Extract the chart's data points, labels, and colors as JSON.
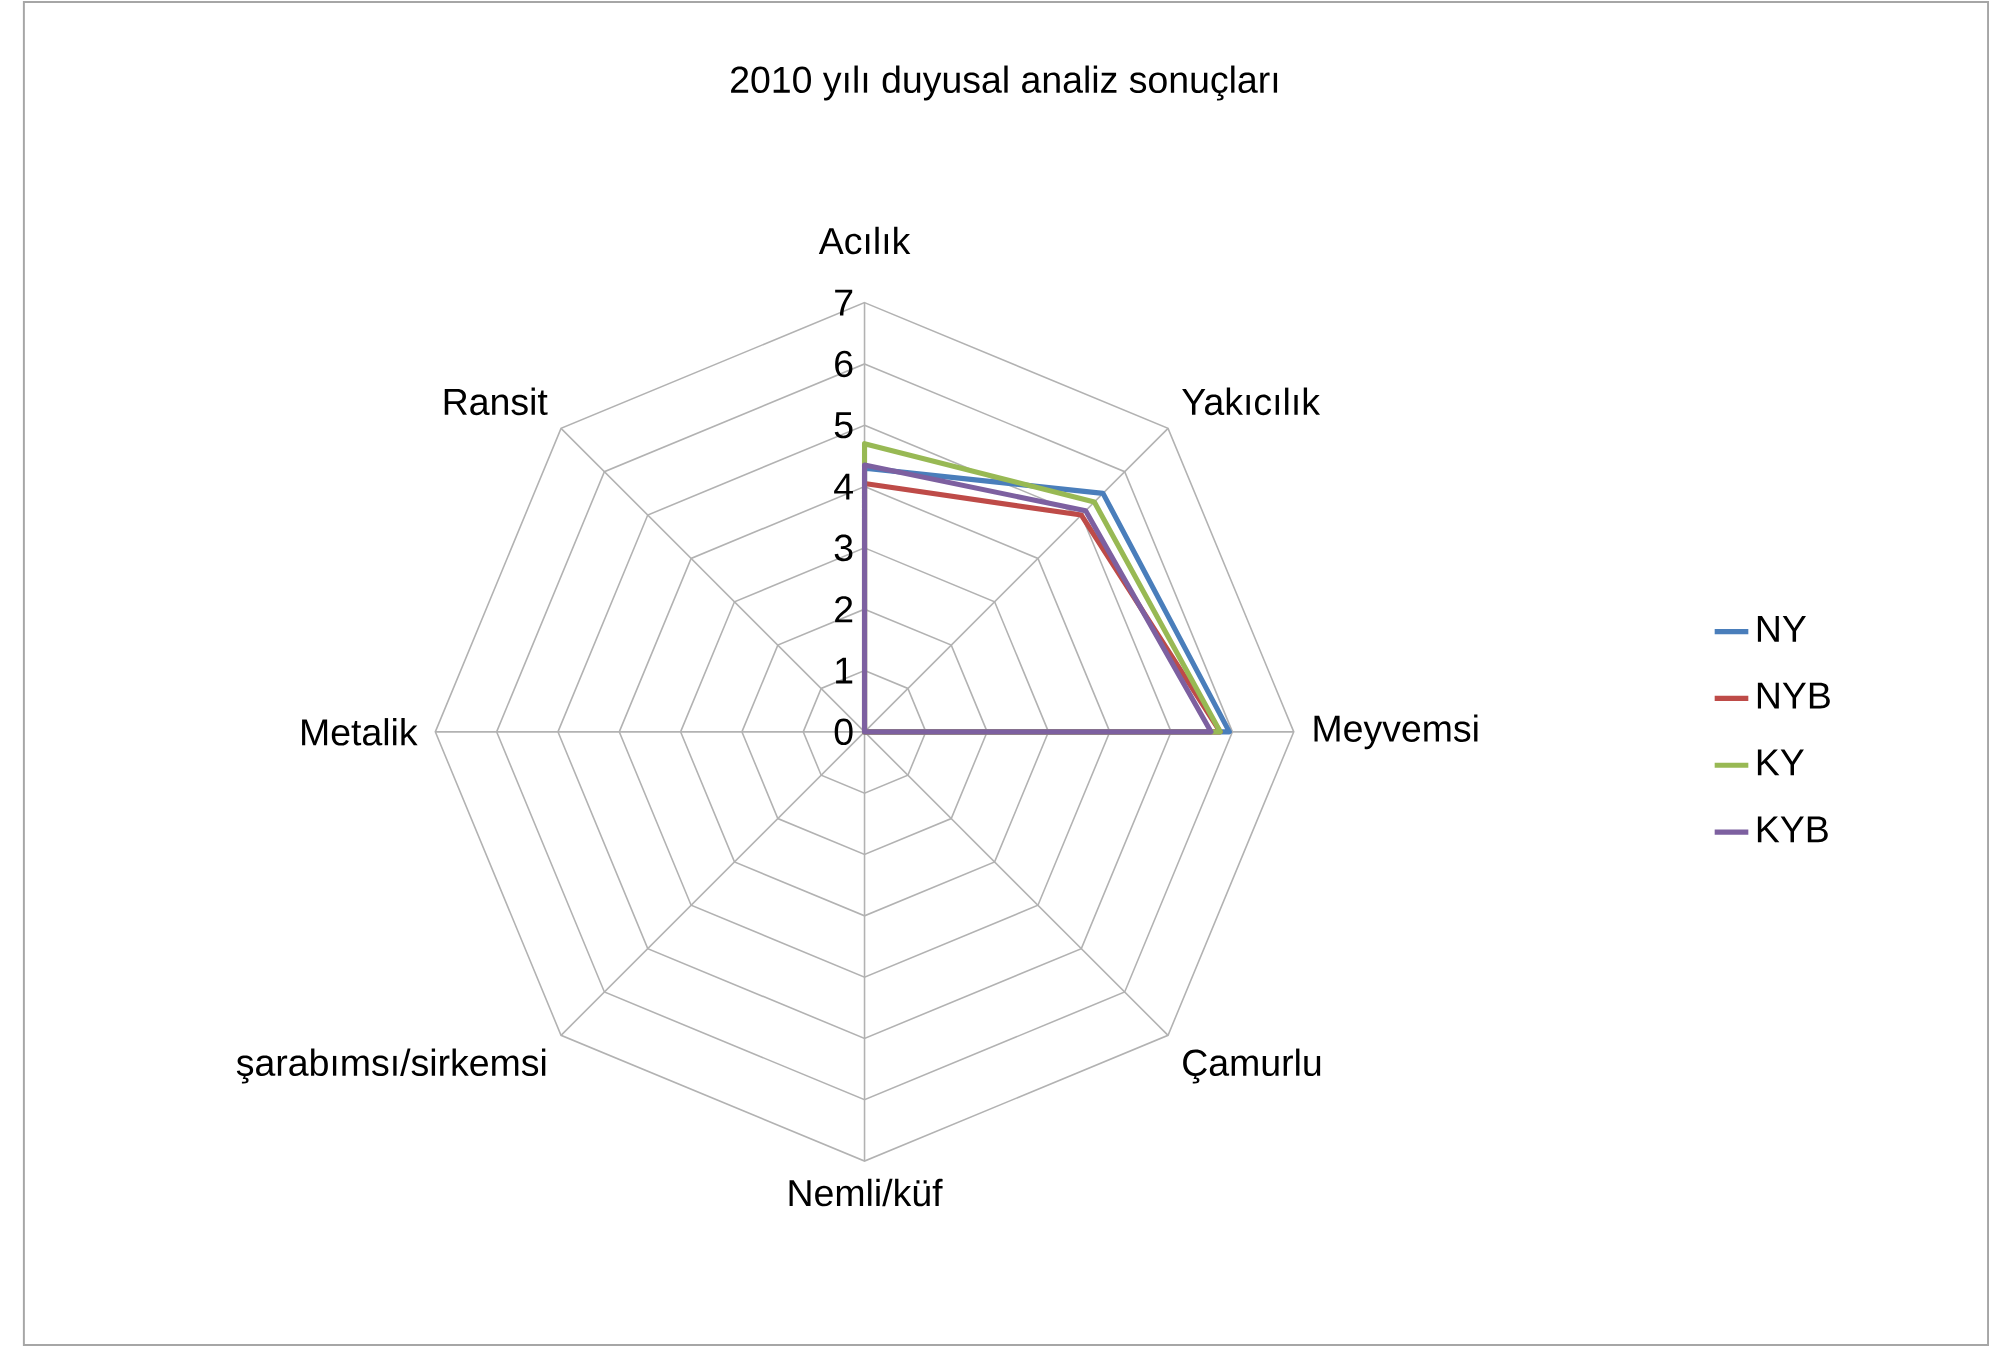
{
  "chart_data": {
    "type": "radar",
    "title": "2010 yılı duyusal analiz sonuçları",
    "categories": [
      "Acılık",
      "Yakıcılık",
      "Meyvemsi",
      "Çamurlu",
      "Nemli/küf",
      "şarabımsı/sirkemsi",
      "Metalik",
      "Ransit"
    ],
    "series": [
      {
        "name": "NY",
        "color": "#4a7ebb",
        "values": [
          4.3,
          5.5,
          5.95,
          0,
          0,
          0,
          0,
          0
        ]
      },
      {
        "name": "NYB",
        "color": "#be4b48",
        "values": [
          4.05,
          5.0,
          5.8,
          0,
          0,
          0,
          0,
          0
        ]
      },
      {
        "name": "KY",
        "color": "#98b954",
        "values": [
          4.7,
          5.3,
          5.8,
          0,
          0,
          0,
          0,
          0
        ]
      },
      {
        "name": "KYB",
        "color": "#7d60a0",
        "values": [
          4.35,
          5.1,
          5.65,
          0,
          0,
          0,
          0,
          0
        ]
      }
    ],
    "ylim": [
      0,
      7
    ],
    "yticks": [
      0,
      1,
      2,
      3,
      4,
      5,
      6,
      7
    ],
    "legend": "right"
  }
}
